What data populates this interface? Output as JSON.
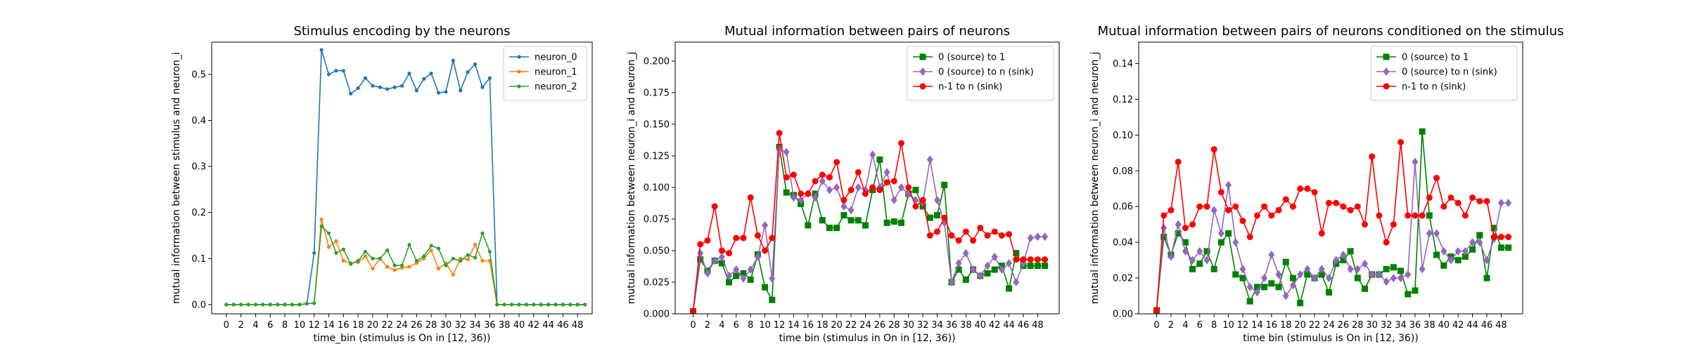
{
  "chart_data": [
    {
      "type": "line",
      "title": "Stimulus encoding by the neurons",
      "xlabel": "time_bin (stimulus is On in [12, 36))",
      "ylabel": "mutual information between stimulus and neuron_i",
      "xlim": [
        -2,
        50
      ],
      "ylim": [
        -0.02,
        0.57
      ],
      "xticks": [
        0,
        2,
        4,
        6,
        8,
        10,
        12,
        14,
        16,
        18,
        20,
        22,
        24,
        26,
        28,
        30,
        32,
        34,
        36,
        38,
        40,
        42,
        44,
        46,
        48
      ],
      "yticks": [
        0.0,
        0.1,
        0.2,
        0.3,
        0.4,
        0.5
      ],
      "ytick_labels": [
        "0.0",
        "0.1",
        "0.2",
        "0.3",
        "0.4",
        "0.5"
      ],
      "legend_position": "top-right",
      "x": [
        0,
        1,
        2,
        3,
        4,
        5,
        6,
        7,
        8,
        9,
        10,
        11,
        12,
        13,
        14,
        15,
        16,
        17,
        18,
        19,
        20,
        21,
        22,
        23,
        24,
        25,
        26,
        27,
        28,
        29,
        30,
        31,
        32,
        33,
        34,
        35,
        36,
        37,
        38,
        39,
        40,
        41,
        42,
        43,
        44,
        45,
        46,
        47,
        48,
        49
      ],
      "series": [
        {
          "name": "neuron_0",
          "color": "#1f77b4",
          "marker": "circle-small",
          "values": [
            0,
            0,
            0,
            0,
            0,
            0,
            0,
            0,
            0,
            0,
            0,
            0.002,
            0.112,
            0.553,
            0.5,
            0.508,
            0.508,
            0.458,
            0.47,
            0.492,
            0.475,
            0.472,
            0.468,
            0.472,
            0.475,
            0.502,
            0.465,
            0.49,
            0.502,
            0.46,
            0.462,
            0.53,
            0.465,
            0.505,
            0.522,
            0.472,
            0.492,
            0,
            0,
            0,
            0,
            0,
            0,
            0,
            0,
            0,
            0,
            0,
            0,
            0
          ]
        },
        {
          "name": "neuron_1",
          "color": "#ff7f0e",
          "marker": "circle-small",
          "values": [
            0,
            0,
            0,
            0,
            0,
            0,
            0,
            0,
            0,
            0,
            0,
            0.002,
            0.003,
            0.185,
            0.125,
            0.138,
            0.095,
            0.09,
            0.092,
            0.105,
            0.078,
            0.1,
            0.082,
            0.075,
            0.08,
            0.082,
            0.09,
            0.1,
            0.118,
            0.078,
            0.09,
            0.065,
            0.1,
            0.098,
            0.13,
            0.095,
            0.095,
            0,
            0,
            0,
            0,
            0,
            0,
            0,
            0,
            0,
            0,
            0,
            0,
            0
          ]
        },
        {
          "name": "neuron_2",
          "color": "#2ca02c",
          "marker": "circle-small",
          "values": [
            0,
            0,
            0,
            0,
            0,
            0,
            0,
            0,
            0,
            0,
            0,
            0.002,
            0.003,
            0.17,
            0.155,
            0.112,
            0.12,
            0.088,
            0.095,
            0.115,
            0.1,
            0.1,
            0.118,
            0.085,
            0.085,
            0.13,
            0.095,
            0.105,
            0.128,
            0.122,
            0.085,
            0.1,
            0.095,
            0.108,
            0.102,
            0.155,
            0.115,
            0,
            0,
            0,
            0,
            0,
            0,
            0,
            0,
            0,
            0,
            0,
            0,
            0
          ]
        }
      ]
    },
    {
      "type": "line",
      "title": "Mutual information between pairs of neurons",
      "xlabel": "time bin (stimulus in On in [12, 36))",
      "ylabel": "mutual information between neuron_i and neuron_j",
      "xlim": [
        -2.5,
        51
      ],
      "ylim": [
        0,
        0.215
      ],
      "xticks": [
        0,
        2,
        4,
        6,
        8,
        10,
        12,
        14,
        16,
        18,
        20,
        22,
        24,
        26,
        28,
        30,
        32,
        34,
        36,
        38,
        40,
        42,
        44,
        46,
        48
      ],
      "yticks": [
        0.0,
        0.025,
        0.05,
        0.075,
        0.1,
        0.125,
        0.15,
        0.175,
        0.2
      ],
      "ytick_labels": [
        "0.000",
        "0.025",
        "0.050",
        "0.075",
        "0.100",
        "0.125",
        "0.150",
        "0.175",
        "0.200"
      ],
      "legend_position": "top-right",
      "x": [
        0,
        1,
        2,
        3,
        4,
        5,
        6,
        7,
        8,
        9,
        10,
        11,
        12,
        13,
        14,
        15,
        16,
        17,
        18,
        19,
        20,
        21,
        22,
        23,
        24,
        25,
        26,
        27,
        28,
        29,
        30,
        31,
        32,
        33,
        34,
        35,
        36,
        37,
        38,
        39,
        40,
        41,
        42,
        43,
        44,
        45,
        46,
        47,
        48,
        49
      ],
      "series": [
        {
          "name": "0 (source) to 1",
          "color": "#008000",
          "marker": "square",
          "values": [
            0.002,
            0.043,
            0.034,
            0.042,
            0.04,
            0.025,
            0.03,
            0.032,
            0.027,
            0.047,
            0.021,
            0.011,
            0.132,
            0.096,
            0.094,
            0.087,
            0.07,
            0.095,
            0.074,
            0.068,
            0.068,
            0.078,
            0.074,
            0.074,
            0.07,
            0.098,
            0.122,
            0.072,
            0.073,
            0.072,
            0.095,
            0.098,
            0.085,
            0.076,
            0.078,
            0.102,
            0.025,
            0.035,
            0.027,
            0.035,
            0.03,
            0.032,
            0.035,
            0.038,
            0.02,
            0.048,
            0.038,
            0.038,
            0.038,
            0.038
          ]
        },
        {
          "name": "0 (source) to n (sink)",
          "color": "#9467bd",
          "marker": "diamond",
          "values": [
            0.002,
            0.048,
            0.032,
            0.042,
            0.045,
            0.03,
            0.035,
            0.028,
            0.035,
            0.045,
            0.07,
            0.028,
            0.13,
            0.128,
            0.092,
            0.09,
            0.095,
            0.092,
            0.105,
            0.098,
            0.1,
            0.085,
            0.082,
            0.1,
            0.098,
            0.126,
            0.1,
            0.112,
            0.09,
            0.1,
            0.095,
            0.09,
            0.088,
            0.122,
            0.09,
            0.072,
            0.025,
            0.04,
            0.048,
            0.035,
            0.03,
            0.038,
            0.045,
            0.035,
            0.04,
            0.025,
            0.04,
            0.06,
            0.061,
            0.061
          ]
        },
        {
          "name": "n-1 to n (sink)",
          "color": "#ff0000",
          "marker": "circle",
          "values": [
            0.002,
            0.055,
            0.058,
            0.085,
            0.05,
            0.048,
            0.06,
            0.06,
            0.092,
            0.062,
            0.05,
            0.06,
            0.143,
            0.108,
            0.11,
            0.095,
            0.095,
            0.105,
            0.11,
            0.108,
            0.12,
            0.09,
            0.098,
            0.112,
            0.095,
            0.1,
            0.098,
            0.104,
            0.105,
            0.135,
            0.1,
            0.085,
            0.09,
            0.062,
            0.065,
            0.076,
            0.062,
            0.058,
            0.065,
            0.058,
            0.068,
            0.062,
            0.065,
            0.062,
            0.063,
            0.043,
            0.043,
            0.043,
            0.043,
            0.043
          ]
        }
      ]
    },
    {
      "type": "line",
      "title": "Mutual information between pairs of neurons conditioned on the stimulus",
      "xlabel": "time bin (stimulus is On in [12, 36))",
      "ylabel": "mutual information between neuron_i and neuron_j",
      "xlim": [
        -2.5,
        51
      ],
      "ylim": [
        0,
        0.152
      ],
      "xticks": [
        0,
        2,
        4,
        6,
        8,
        10,
        12,
        14,
        16,
        18,
        20,
        22,
        24,
        26,
        28,
        30,
        32,
        34,
        36,
        38,
        40,
        42,
        44,
        46,
        48
      ],
      "yticks": [
        0.0,
        0.02,
        0.04,
        0.06,
        0.08,
        0.1,
        0.12,
        0.14
      ],
      "ytick_labels": [
        "0.00",
        "0.02",
        "0.04",
        "0.06",
        "0.08",
        "0.10",
        "0.12",
        "0.14"
      ],
      "legend_position": "top-right",
      "x": [
        0,
        1,
        2,
        3,
        4,
        5,
        6,
        7,
        8,
        9,
        10,
        11,
        12,
        13,
        14,
        15,
        16,
        17,
        18,
        19,
        20,
        21,
        22,
        23,
        24,
        25,
        26,
        27,
        28,
        29,
        30,
        31,
        32,
        33,
        34,
        35,
        36,
        37,
        38,
        39,
        40,
        41,
        42,
        43,
        44,
        45,
        46,
        47,
        48,
        49
      ],
      "series": [
        {
          "name": "0 (source) to 1",
          "color": "#008000",
          "marker": "square",
          "values": [
            0.002,
            0.043,
            0.033,
            0.045,
            0.04,
            0.025,
            0.028,
            0.035,
            0.025,
            0.04,
            0.045,
            0.022,
            0.02,
            0.007,
            0.015,
            0.015,
            0.017,
            0.015,
            0.029,
            0.02,
            0.006,
            0.022,
            0.02,
            0.022,
            0.012,
            0.028,
            0.03,
            0.035,
            0.02,
            0.014,
            0.022,
            0.022,
            0.025,
            0.026,
            0.024,
            0.011,
            0.013,
            0.102,
            0.055,
            0.033,
            0.027,
            0.032,
            0.03,
            0.032,
            0.036,
            0.044,
            0.02,
            0.048,
            0.037,
            0.037
          ]
        },
        {
          "name": "0 (source) to n (sink)",
          "color": "#9467bd",
          "marker": "diamond",
          "values": [
            0.002,
            0.048,
            0.032,
            0.05,
            0.035,
            0.03,
            0.035,
            0.03,
            0.058,
            0.045,
            0.072,
            0.04,
            0.025,
            0.015,
            0.012,
            0.02,
            0.033,
            0.022,
            0.01,
            0.016,
            0.022,
            0.025,
            0.02,
            0.025,
            0.02,
            0.03,
            0.033,
            0.025,
            0.025,
            0.028,
            0.022,
            0.022,
            0.018,
            0.02,
            0.02,
            0.022,
            0.085,
            0.025,
            0.045,
            0.045,
            0.035,
            0.03,
            0.035,
            0.035,
            0.04,
            0.04,
            0.03,
            0.042,
            0.062,
            0.062
          ]
        },
        {
          "name": "n-1 to n (sink)",
          "color": "#ff0000",
          "marker": "circle",
          "values": [
            0.002,
            0.055,
            0.058,
            0.085,
            0.048,
            0.05,
            0.06,
            0.06,
            0.092,
            0.068,
            0.058,
            0.06,
            0.052,
            0.043,
            0.055,
            0.06,
            0.055,
            0.058,
            0.064,
            0.06,
            0.07,
            0.07,
            0.068,
            0.045,
            0.062,
            0.062,
            0.06,
            0.058,
            0.06,
            0.05,
            0.088,
            0.055,
            0.04,
            0.05,
            0.096,
            0.055,
            0.055,
            0.055,
            0.065,
            0.076,
            0.06,
            0.065,
            0.062,
            0.055,
            0.065,
            0.063,
            0.063,
            0.043,
            0.043,
            0.043
          ]
        }
      ]
    }
  ]
}
